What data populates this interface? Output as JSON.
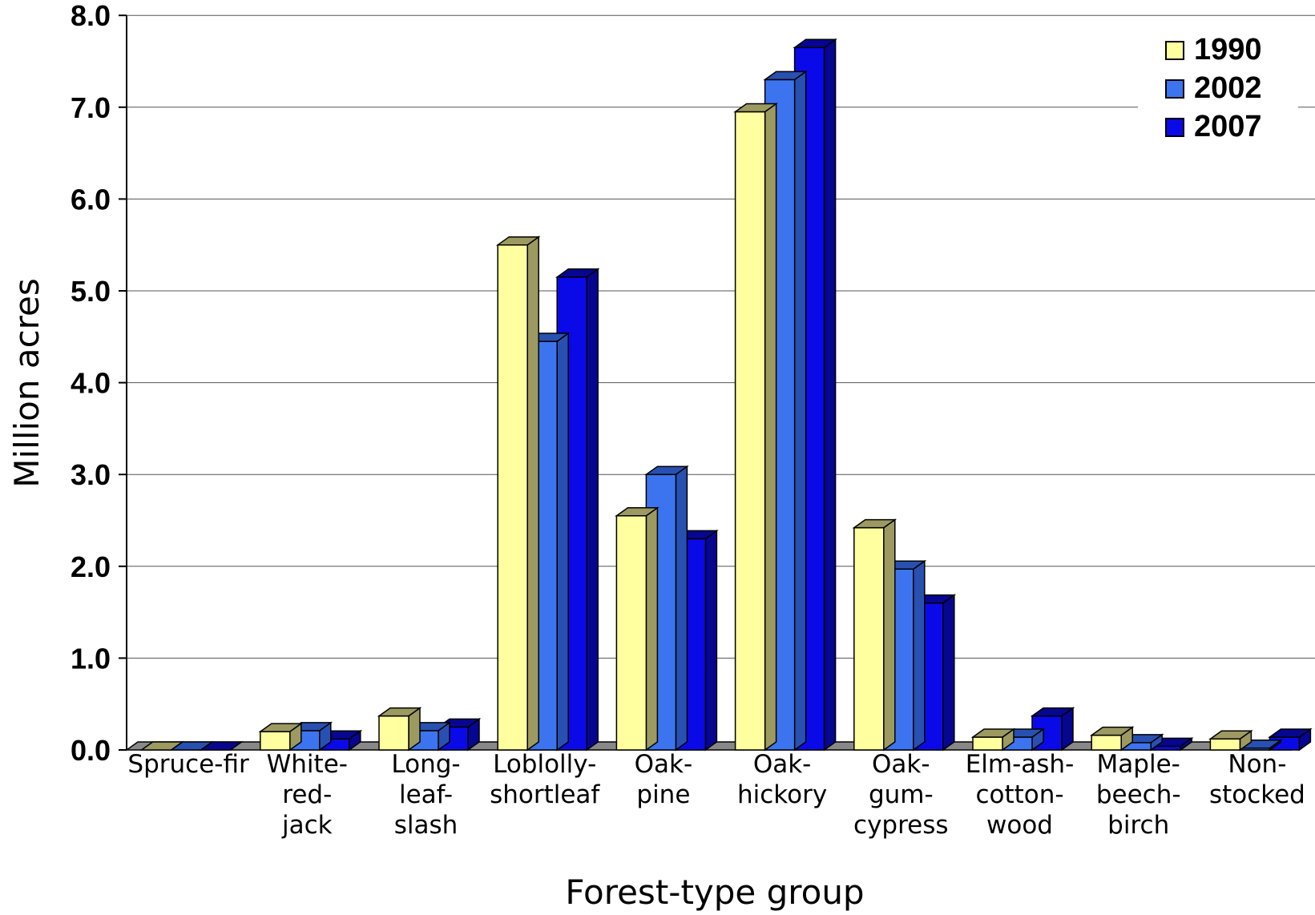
{
  "chart_data": {
    "type": "bar",
    "xlabel": "Forest-type group",
    "ylabel": "Million acres",
    "ylim": [
      0,
      8
    ],
    "yticks": [
      "0.0",
      "1.0",
      "2.0",
      "3.0",
      "4.0",
      "5.0",
      "6.0",
      "7.0",
      "8.0"
    ],
    "grid": true,
    "legend_position": "top-right",
    "categories": [
      [
        "Spruce-fir"
      ],
      [
        "White-",
        "red-",
        "jack"
      ],
      [
        "Long-",
        "leaf-",
        "slash"
      ],
      [
        "Loblolly-",
        "shortleaf"
      ],
      [
        "Oak-",
        "pine"
      ],
      [
        "Oak-",
        "hickory"
      ],
      [
        "Oak-",
        "gum-",
        "cypress"
      ],
      [
        "Elm-ash-",
        "cotton-",
        "wood"
      ],
      [
        "Maple-",
        "beech-",
        "birch"
      ],
      [
        "Non-",
        "stocked"
      ]
    ],
    "series": [
      {
        "name": "1990",
        "color": "#FFFFA0",
        "side_color": "#9C9A60",
        "values": [
          0.0,
          0.2,
          0.37,
          5.5,
          2.55,
          6.95,
          2.42,
          0.14,
          0.16,
          0.12
        ]
      },
      {
        "name": "2002",
        "color": "#3C74F0",
        "side_color": "#2850B0",
        "values": [
          0.0,
          0.21,
          0.21,
          4.45,
          3.0,
          7.3,
          1.97,
          0.14,
          0.08,
          0.02
        ]
      },
      {
        "name": "2007",
        "color": "#0A0AE8",
        "side_color": "#060690",
        "values": [
          0.0,
          0.12,
          0.25,
          5.15,
          2.3,
          7.65,
          1.6,
          0.37,
          0.04,
          0.14
        ]
      }
    ]
  }
}
